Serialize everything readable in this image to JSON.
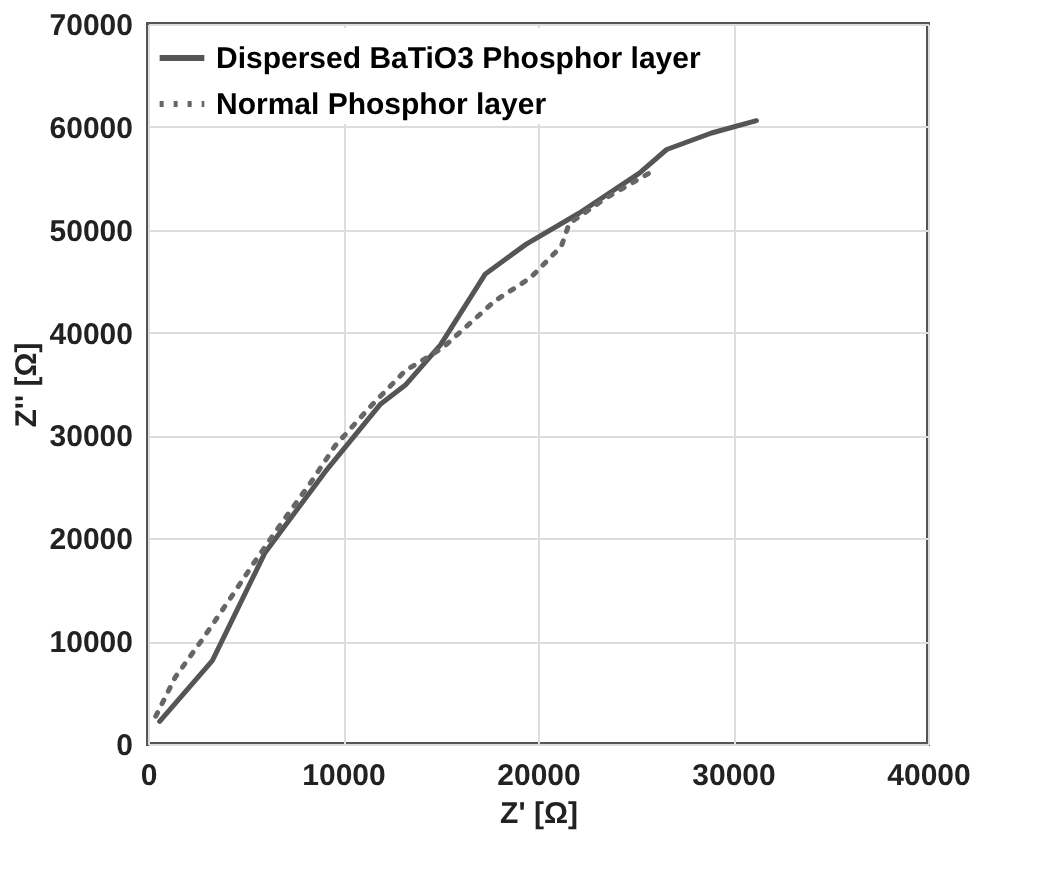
{
  "chart_data": {
    "type": "line",
    "xlabel": "Z' [Ω]",
    "ylabel": "Z'' [Ω]",
    "xlim": [
      0,
      40000
    ],
    "xticks": [
      0,
      10000,
      20000,
      30000,
      40000
    ],
    "ylim": [
      0,
      70000
    ],
    "yticks": [
      0,
      10000,
      20000,
      30000,
      40000,
      50000,
      60000,
      70000
    ],
    "grid": true,
    "legend": "top left",
    "series": [
      {
        "name": "Dispersed BaTiO3 Phosphor layer",
        "color": "#555555",
        "line_style": "solid",
        "x": [
          600,
          3300,
          6000,
          9100,
          11900,
          13200,
          15000,
          17300,
          19400,
          22100,
          25200,
          26600,
          28900,
          31200
        ],
        "values": [
          2200,
          8100,
          18600,
          26500,
          33000,
          34900,
          38800,
          45700,
          48600,
          51600,
          55500,
          57800,
          59400,
          60600
        ]
      },
      {
        "name": "Normal Phosphor layer",
        "color": "#666666",
        "line_style": "dotted",
        "x": [
          400,
          1400,
          2800,
          4200,
          5500,
          6900,
          8300,
          9600,
          11500,
          13200,
          15100,
          17800,
          19600,
          21200,
          21600,
          23500,
          25700
        ],
        "values": [
          2700,
          6500,
          10200,
          14100,
          17800,
          21600,
          25300,
          29000,
          33000,
          36300,
          38500,
          43100,
          45300,
          48400,
          50600,
          53100,
          55500
        ]
      }
    ]
  }
}
